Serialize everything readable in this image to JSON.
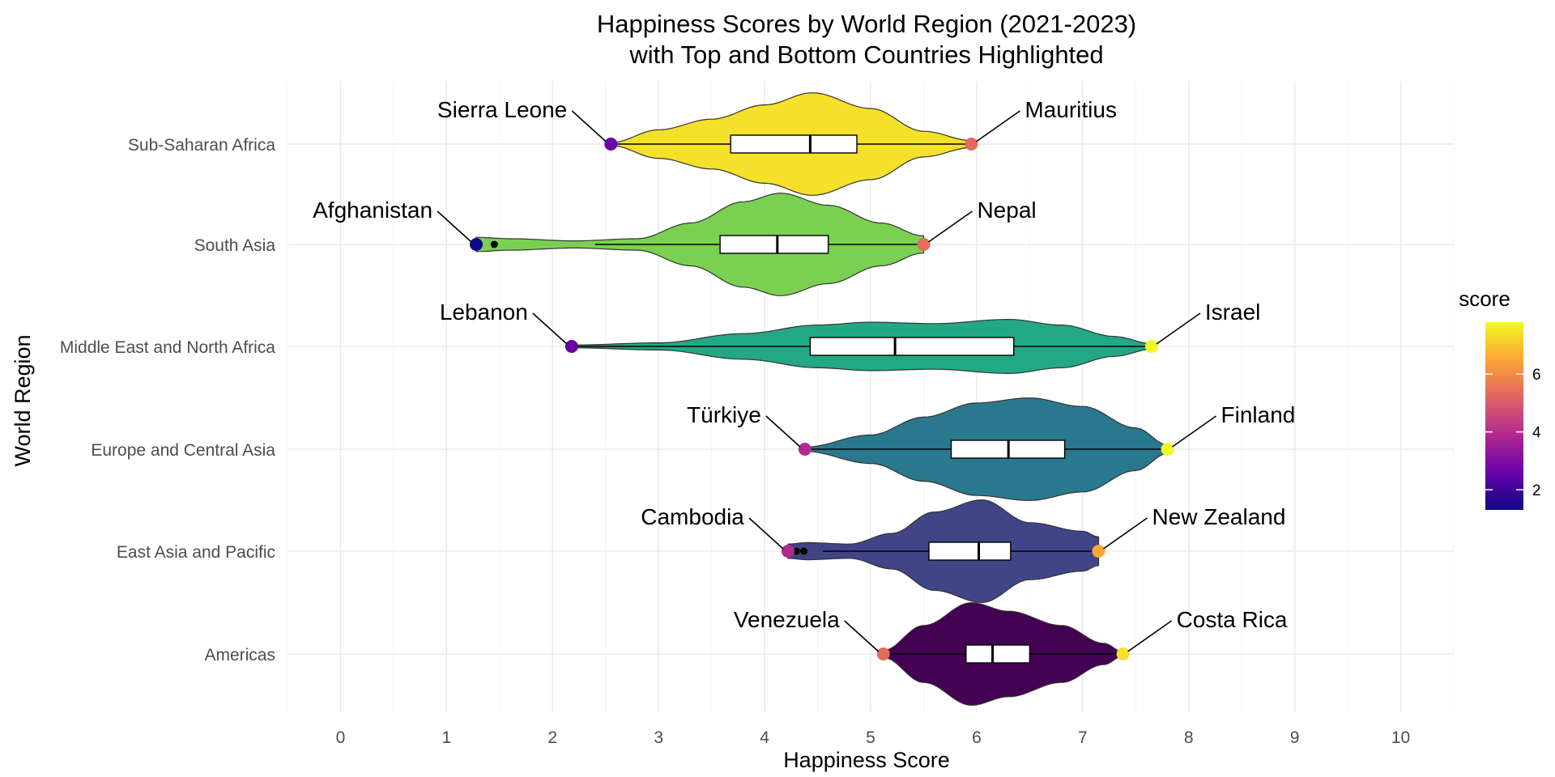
{
  "chart_data": {
    "type": "violin",
    "title": "Happiness Scores by World Region (2021-2023)",
    "subtitle": "with Top and Bottom Countries Highlighted",
    "xlabel": "Happiness Score",
    "ylabel": "World Region",
    "xlim": [
      -0.5,
      10.5
    ],
    "x_ticks": [
      0,
      1,
      2,
      3,
      4,
      5,
      6,
      7,
      8,
      9,
      10
    ],
    "grid": true,
    "colorbar": {
      "title": "score",
      "range": [
        1.3,
        7.8
      ],
      "ticks": [
        2,
        4,
        6
      ],
      "colors": [
        "#0d0887",
        "#6a00a8",
        "#b12a90",
        "#e16462",
        "#fca636",
        "#f0f921"
      ]
    },
    "regions": [
      {
        "name": "Sub-Saharan Africa",
        "fill": "#f5e02a",
        "min": 2.55,
        "max": 5.95,
        "q1": 3.68,
        "median": 4.43,
        "q3": 4.87,
        "whisker_low": 2.55,
        "whisker_high": 5.95,
        "outliers": [],
        "density": [
          [
            2.55,
            0.02
          ],
          [
            3.0,
            0.2
          ],
          [
            3.5,
            0.35
          ],
          [
            4.0,
            0.55
          ],
          [
            4.45,
            0.72
          ],
          [
            5.0,
            0.5
          ],
          [
            5.5,
            0.18
          ],
          [
            5.95,
            0.05
          ]
        ],
        "bottom": {
          "country": "Sierra Leone",
          "score": 2.55,
          "color": "#6a00a8"
        },
        "top": {
          "country": "Mauritius",
          "score": 5.95,
          "color": "#e56b5d"
        }
      },
      {
        "name": "South Asia",
        "fill": "#7ad151",
        "min": 1.28,
        "max": 5.5,
        "q1": 3.58,
        "median": 4.12,
        "q3": 4.6,
        "whisker_low": 2.4,
        "whisker_high": 5.5,
        "outliers": [
          1.45
        ],
        "density": [
          [
            1.28,
            0.1
          ],
          [
            1.6,
            0.08
          ],
          [
            2.2,
            0.05
          ],
          [
            2.8,
            0.08
          ],
          [
            3.3,
            0.3
          ],
          [
            3.8,
            0.6
          ],
          [
            4.15,
            0.72
          ],
          [
            4.6,
            0.55
          ],
          [
            5.1,
            0.3
          ],
          [
            5.5,
            0.12
          ]
        ],
        "bottom": {
          "country": "Afghanistan",
          "score": 1.28,
          "color": "#0d0887"
        },
        "top": {
          "country": "Nepal",
          "score": 5.5,
          "color": "#e56b5d"
        }
      },
      {
        "name": "Middle East and North Africa",
        "fill": "#22a884",
        "min": 2.18,
        "max": 7.65,
        "q1": 4.43,
        "median": 5.23,
        "q3": 6.35,
        "whisker_low": 2.18,
        "whisker_high": 7.65,
        "outliers": [],
        "density": [
          [
            2.18,
            0.02
          ],
          [
            3.0,
            0.05
          ],
          [
            3.8,
            0.18
          ],
          [
            4.5,
            0.3
          ],
          [
            5.0,
            0.34
          ],
          [
            5.6,
            0.32
          ],
          [
            6.3,
            0.38
          ],
          [
            6.8,
            0.3
          ],
          [
            7.3,
            0.14
          ],
          [
            7.65,
            0.04
          ]
        ],
        "bottom": {
          "country": "Lebanon",
          "score": 2.18,
          "color": "#6a00a8"
        },
        "top": {
          "country": "Israel",
          "score": 7.65,
          "color": "#f0f921"
        }
      },
      {
        "name": "Europe and Central Asia",
        "fill": "#2a788e",
        "min": 4.38,
        "max": 7.8,
        "q1": 5.76,
        "median": 6.3,
        "q3": 6.83,
        "whisker_low": 4.38,
        "whisker_high": 7.8,
        "outliers": [],
        "density": [
          [
            4.38,
            0.03
          ],
          [
            5.0,
            0.2
          ],
          [
            5.5,
            0.45
          ],
          [
            6.0,
            0.65
          ],
          [
            6.5,
            0.72
          ],
          [
            7.0,
            0.6
          ],
          [
            7.5,
            0.3
          ],
          [
            7.8,
            0.06
          ]
        ],
        "bottom": {
          "country": "Türkiye",
          "score": 4.38,
          "color": "#b12a90"
        },
        "top": {
          "country": "Finland",
          "score": 7.8,
          "color": "#f0f921"
        }
      },
      {
        "name": "East Asia and Pacific",
        "fill": "#414487",
        "min": 4.22,
        "max": 7.15,
        "q1": 5.55,
        "median": 6.02,
        "q3": 6.32,
        "whisker_low": 4.55,
        "whisker_high": 7.15,
        "outliers": [
          4.3,
          4.37
        ],
        "density": [
          [
            4.22,
            0.1
          ],
          [
            4.4,
            0.12
          ],
          [
            4.8,
            0.1
          ],
          [
            5.2,
            0.25
          ],
          [
            5.6,
            0.55
          ],
          [
            6.05,
            0.72
          ],
          [
            6.5,
            0.4
          ],
          [
            7.0,
            0.28
          ],
          [
            7.15,
            0.2
          ]
        ],
        "bottom": {
          "country": "Cambodia",
          "score": 4.22,
          "color": "#b12a90"
        },
        "top": {
          "country": "New Zealand",
          "score": 7.15,
          "color": "#fca636"
        }
      },
      {
        "name": "Americas",
        "fill": "#440154",
        "min": 5.12,
        "max": 7.38,
        "q1": 5.9,
        "median": 6.15,
        "q3": 6.5,
        "whisker_low": 5.12,
        "whisker_high": 7.38,
        "outliers": [],
        "density": [
          [
            5.12,
            0.05
          ],
          [
            5.5,
            0.4
          ],
          [
            5.95,
            0.72
          ],
          [
            6.3,
            0.6
          ],
          [
            6.8,
            0.4
          ],
          [
            7.2,
            0.15
          ],
          [
            7.38,
            0.03
          ]
        ],
        "bottom": {
          "country": "Venezuela",
          "score": 5.12,
          "color": "#e56b5d"
        },
        "top": {
          "country": "Costa Rica",
          "score": 7.38,
          "color": "#f5e02a"
        }
      }
    ]
  }
}
